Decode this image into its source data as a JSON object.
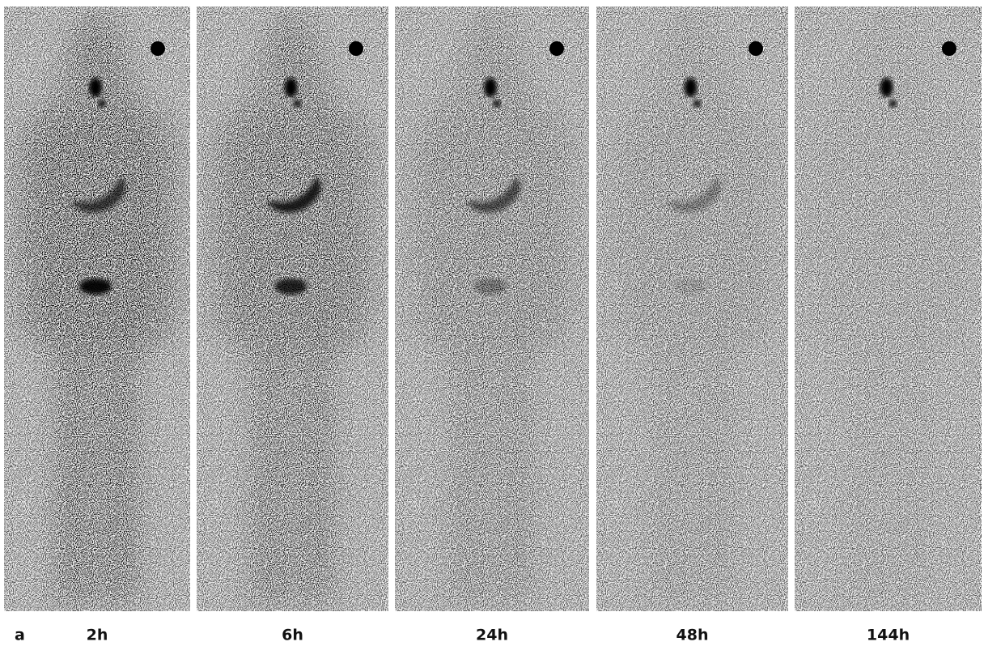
{
  "figure_label": "a",
  "panels": [
    {
      "label": "2h"
    },
    {
      "label": "6h"
    },
    {
      "label": "24h"
    },
    {
      "label": "48h"
    },
    {
      "label": "144h"
    }
  ]
}
